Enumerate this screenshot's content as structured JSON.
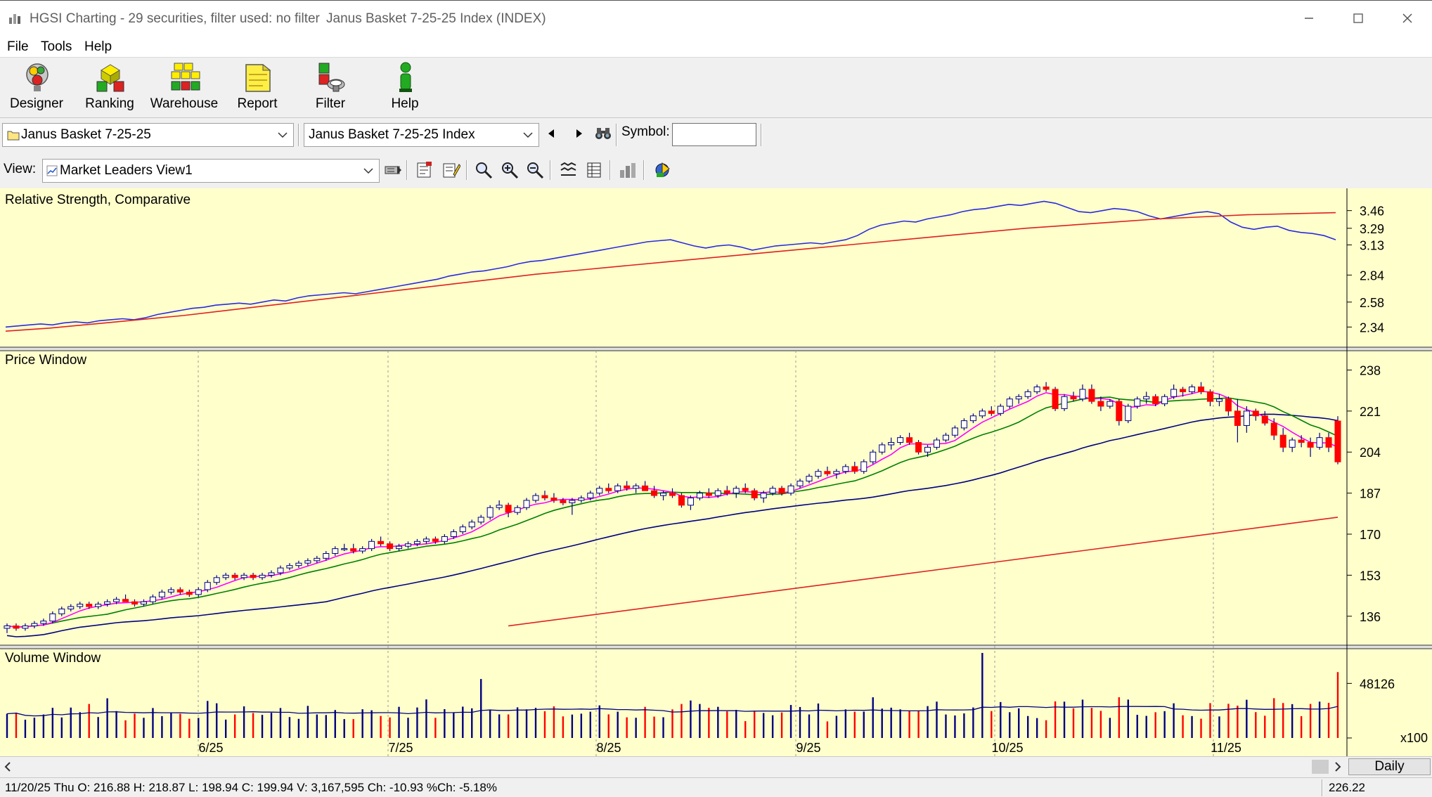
{
  "window": {
    "title": "HGSI Charting - 29 securities, filter used: no filter",
    "subtitle": "Janus Basket 7-25-25 Index (INDEX)"
  },
  "menu": [
    "File",
    "Tools",
    "Help"
  ],
  "toolbar": [
    {
      "label": "Designer",
      "icon": "designer-icon"
    },
    {
      "label": "Ranking",
      "icon": "ranking-icon"
    },
    {
      "label": "Warehouse",
      "icon": "warehouse-icon"
    },
    {
      "label": "Report",
      "icon": "report-icon"
    },
    {
      "label": "Filter",
      "icon": "filter-icon"
    },
    {
      "label": "Help",
      "icon": "help-icon"
    }
  ],
  "selectors": {
    "basket": "Janus Basket 7-25-25",
    "security": "Janus Basket 7-25-25 Index",
    "symbol_label": "Symbol:",
    "symbol_value": "",
    "view_label": "View:",
    "view_value": "Market Leaders View1"
  },
  "colors": {
    "chart_bg": "#ffffcc",
    "rs_line": "#2a2ae0",
    "rs_avg": "#e02020",
    "up_candle": "#ffffff",
    "down_candle": "#ff0000",
    "candle_outline": "#000080",
    "ma_short": "#ff00ff",
    "ma_mid": "#008000",
    "ma_long": "#000080",
    "ma_200": "#e02020",
    "volume_up": "#000080",
    "volume_down": "#ff0000"
  },
  "chart_data": [
    {
      "type": "line",
      "title": "Relative Strength, Comparative",
      "y_ticks": [
        "3.46",
        "3.29",
        "3.13",
        "2.84",
        "2.58",
        "2.34"
      ],
      "series": [
        {
          "values": [
            2.34,
            2.35,
            2.36,
            2.37,
            2.36,
            2.38,
            2.39,
            2.38,
            2.4,
            2.41,
            2.42,
            2.41,
            2.43,
            2.46,
            2.48,
            2.5,
            2.52,
            2.53,
            2.55,
            2.56,
            2.57,
            2.56,
            2.58,
            2.6,
            2.59,
            2.62,
            2.64,
            2.65,
            2.66,
            2.67,
            2.66,
            2.68,
            2.7,
            2.72,
            2.74,
            2.76,
            2.78,
            2.8,
            2.83,
            2.85,
            2.87,
            2.88,
            2.9,
            2.92,
            2.95,
            2.97,
            2.98,
            3.0,
            3.02,
            3.04,
            3.06,
            3.08,
            3.1,
            3.12,
            3.14,
            3.16,
            3.17,
            3.18,
            3.15,
            3.12,
            3.1,
            3.12,
            3.13,
            3.11,
            3.08,
            3.1,
            3.12,
            3.13,
            3.14,
            3.15,
            3.14,
            3.16,
            3.18,
            3.22,
            3.28,
            3.32,
            3.34,
            3.36,
            3.35,
            3.38,
            3.4,
            3.42,
            3.45,
            3.47,
            3.48,
            3.5,
            3.52,
            3.51,
            3.53,
            3.55,
            3.53,
            3.49,
            3.45,
            3.44,
            3.46,
            3.48,
            3.47,
            3.45,
            3.41,
            3.38,
            3.4,
            3.42,
            3.44,
            3.45,
            3.43,
            3.35,
            3.3,
            3.28,
            3.3,
            3.31,
            3.27,
            3.25,
            3.24,
            3.22,
            3.18
          ]
        },
        {
          "values": [
            2.3,
            2.33,
            2.37,
            2.41,
            2.45,
            2.5,
            2.55,
            2.6,
            2.65,
            2.7,
            2.75,
            2.8,
            2.85,
            2.89,
            2.93,
            2.97,
            3.01,
            3.05,
            3.09,
            3.13,
            3.17,
            3.21,
            3.25,
            3.29,
            3.32,
            3.35,
            3.38,
            3.4,
            3.42,
            3.43,
            3.44
          ]
        }
      ]
    },
    {
      "type": "candlestick",
      "title": "Price Window",
      "y_ticks": [
        "238",
        "221",
        "204",
        "187",
        "170",
        "153",
        "136"
      ],
      "x_ticks": [
        "6/25",
        "7/25",
        "8/25",
        "9/25",
        "10/25",
        "11/25"
      ],
      "candles": [
        [
          131,
          133,
          129,
          132
        ],
        [
          132,
          133,
          130,
          131
        ],
        [
          131,
          133,
          130,
          132
        ],
        [
          132,
          134,
          131,
          133
        ],
        [
          133,
          135,
          132,
          134
        ],
        [
          134,
          138,
          133,
          137
        ],
        [
          137,
          140,
          136,
          139
        ],
        [
          139,
          141,
          138,
          140
        ],
        [
          140,
          142,
          139,
          141
        ],
        [
          141,
          142,
          139,
          140
        ],
        [
          140,
          142,
          139,
          141
        ],
        [
          141,
          143,
          140,
          142
        ],
        [
          142,
          144,
          141,
          143
        ],
        [
          143,
          145,
          142,
          142
        ],
        [
          142,
          143,
          140,
          141
        ],
        [
          141,
          143,
          140,
          142
        ],
        [
          142,
          145,
          141,
          144
        ],
        [
          144,
          147,
          143,
          146
        ],
        [
          146,
          148,
          145,
          147
        ],
        [
          147,
          148,
          145,
          146
        ],
        [
          146,
          147,
          144,
          145
        ],
        [
          145,
          148,
          144,
          147
        ],
        [
          147,
          151,
          146,
          150
        ],
        [
          150,
          153,
          149,
          152
        ],
        [
          152,
          154,
          151,
          153
        ],
        [
          153,
          154,
          151,
          152
        ],
        [
          152,
          154,
          151,
          153
        ],
        [
          153,
          154,
          151,
          152
        ],
        [
          152,
          154,
          151,
          153
        ],
        [
          153,
          155,
          152,
          154
        ],
        [
          154,
          157,
          153,
          156
        ],
        [
          156,
          158,
          155,
          157
        ],
        [
          157,
          159,
          156,
          158
        ],
        [
          158,
          160,
          157,
          159
        ],
        [
          159,
          161,
          158,
          160
        ],
        [
          160,
          163,
          159,
          162
        ],
        [
          162,
          165,
          161,
          164
        ],
        [
          164,
          166,
          163,
          164
        ],
        [
          164,
          166,
          162,
          163
        ],
        [
          163,
          165,
          162,
          164
        ],
        [
          164,
          168,
          163,
          167
        ],
        [
          167,
          169,
          165,
          166
        ],
        [
          166,
          167,
          163,
          164
        ],
        [
          164,
          166,
          163,
          165
        ],
        [
          165,
          167,
          164,
          166
        ],
        [
          166,
          168,
          165,
          167
        ],
        [
          167,
          169,
          166,
          168
        ],
        [
          168,
          169,
          166,
          167
        ],
        [
          167,
          170,
          166,
          169
        ],
        [
          169,
          172,
          168,
          171
        ],
        [
          171,
          174,
          170,
          173
        ],
        [
          173,
          176,
          172,
          175
        ],
        [
          175,
          178,
          174,
          177
        ],
        [
          177,
          182,
          176,
          181
        ],
        [
          181,
          184,
          180,
          182
        ],
        [
          182,
          183,
          177,
          179
        ],
        [
          179,
          182,
          178,
          181
        ],
        [
          181,
          185,
          180,
          184
        ],
        [
          184,
          187,
          183,
          186
        ],
        [
          186,
          188,
          184,
          185
        ],
        [
          185,
          187,
          183,
          184
        ],
        [
          184,
          185,
          182,
          183
        ],
        [
          183,
          185,
          178,
          184
        ],
        [
          184,
          186,
          183,
          185
        ],
        [
          185,
          188,
          184,
          187
        ],
        [
          187,
          190,
          186,
          189
        ],
        [
          189,
          191,
          187,
          188
        ],
        [
          188,
          191,
          187,
          190
        ],
        [
          190,
          192,
          188,
          189
        ],
        [
          189,
          191,
          187,
          190
        ],
        [
          190,
          192,
          188,
          188
        ],
        [
          188,
          190,
          185,
          186
        ],
        [
          186,
          188,
          184,
          187
        ],
        [
          187,
          189,
          185,
          186
        ],
        [
          186,
          187,
          181,
          182
        ],
        [
          182,
          186,
          180,
          185
        ],
        [
          185,
          188,
          184,
          187
        ],
        [
          187,
          189,
          185,
          186
        ],
        [
          186,
          189,
          185,
          188
        ],
        [
          188,
          190,
          186,
          187
        ],
        [
          187,
          190,
          185,
          189
        ],
        [
          189,
          191,
          187,
          188
        ],
        [
          188,
          189,
          184,
          185
        ],
        [
          185,
          188,
          183,
          187
        ],
        [
          187,
          190,
          186,
          189
        ],
        [
          189,
          190,
          186,
          187
        ],
        [
          187,
          191,
          186,
          190
        ],
        [
          190,
          193,
          189,
          192
        ],
        [
          192,
          195,
          191,
          194
        ],
        [
          194,
          197,
          193,
          196
        ],
        [
          196,
          198,
          194,
          195
        ],
        [
          195,
          197,
          193,
          196
        ],
        [
          196,
          199,
          195,
          198
        ],
        [
          198,
          200,
          195,
          196
        ],
        [
          196,
          201,
          195,
          200
        ],
        [
          200,
          205,
          199,
          204
        ],
        [
          204,
          208,
          203,
          207
        ],
        [
          207,
          210,
          205,
          208
        ],
        [
          208,
          211,
          207,
          210
        ],
        [
          210,
          212,
          207,
          208
        ],
        [
          208,
          209,
          203,
          204
        ],
        [
          204,
          207,
          202,
          206
        ],
        [
          206,
          210,
          205,
          209
        ],
        [
          209,
          212,
          208,
          211
        ],
        [
          211,
          215,
          210,
          214
        ],
        [
          214,
          218,
          213,
          217
        ],
        [
          217,
          220,
          216,
          219
        ],
        [
          219,
          222,
          218,
          221
        ],
        [
          221,
          223,
          219,
          220
        ],
        [
          220,
          224,
          219,
          223
        ],
        [
          223,
          227,
          222,
          226
        ],
        [
          226,
          228,
          224,
          227
        ],
        [
          227,
          230,
          226,
          229
        ],
        [
          229,
          232,
          228,
          231
        ],
        [
          231,
          233,
          229,
          230
        ],
        [
          230,
          231,
          221,
          222
        ],
        [
          222,
          228,
          221,
          227
        ],
        [
          227,
          229,
          225,
          226
        ],
        [
          226,
          232,
          225,
          230
        ],
        [
          230,
          232,
          224,
          225
        ],
        [
          225,
          227,
          221,
          223
        ],
        [
          223,
          226,
          222,
          225
        ],
        [
          225,
          226,
          215,
          217
        ],
        [
          217,
          224,
          216,
          223
        ],
        [
          223,
          227,
          222,
          226
        ],
        [
          226,
          229,
          224,
          227
        ],
        [
          227,
          228,
          223,
          224
        ],
        [
          224,
          228,
          223,
          227
        ],
        [
          227,
          232,
          226,
          230
        ],
        [
          230,
          231,
          227,
          229
        ],
        [
          229,
          232,
          228,
          231
        ],
        [
          231,
          233,
          228,
          229
        ],
        [
          229,
          230,
          223,
          225
        ],
        [
          225,
          228,
          223,
          226
        ],
        [
          226,
          227,
          219,
          221
        ],
        [
          221,
          226,
          208,
          215
        ],
        [
          215,
          223,
          212,
          221
        ],
        [
          221,
          222,
          217,
          219
        ],
        [
          219,
          221,
          215,
          216
        ],
        [
          216,
          218,
          209,
          211
        ],
        [
          211,
          214,
          204,
          206
        ],
        [
          206,
          210,
          204,
          209
        ],
        [
          209,
          211,
          206,
          208
        ],
        [
          208,
          210,
          202,
          206
        ],
        [
          206,
          212,
          205,
          210
        ],
        [
          210,
          212,
          204,
          206
        ],
        [
          216.88,
          218.87,
          198.94,
          199.94
        ]
      ]
    },
    {
      "type": "bar",
      "title": "Volume Window",
      "y_ticks": [
        "48126"
      ],
      "y_multiplier": "x100"
    }
  ],
  "scroll": {
    "period": "Daily"
  },
  "status": {
    "ohlc": "11/20/25 Thu O: 216.88 H: 218.87 L: 198.94 C: 199.94 V: 3,167,595 Ch: -10.93 %Ch: -5.18%",
    "price": "226.22"
  }
}
